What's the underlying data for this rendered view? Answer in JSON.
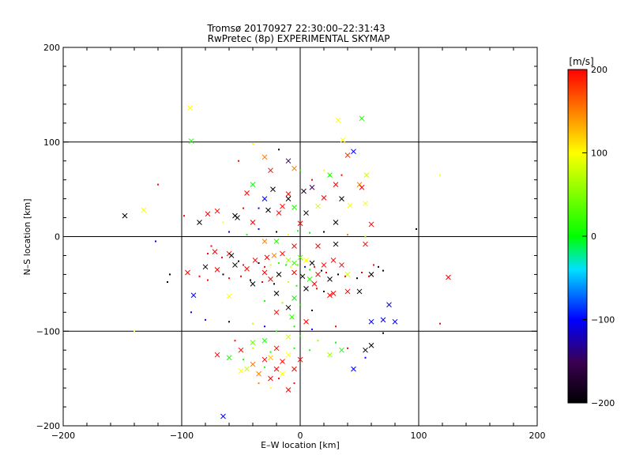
{
  "chart_data": {
    "type": "scatter",
    "title": "Tromsø 20170927 22:30:00–22:31:43",
    "subtitle": "RwPretec (8p) EXPERIMENTAL SKYMAP",
    "xlabel": "E–W location [km]",
    "ylabel": "N–S location [km]",
    "xlim": [
      -200,
      200
    ],
    "ylim": [
      -200,
      200
    ],
    "xticks": [
      -200,
      -100,
      0,
      100,
      200
    ],
    "yticks": [
      -200,
      -100,
      0,
      100,
      200
    ],
    "grid": true,
    "colorbar": {
      "label": "[m/s]",
      "min": -200,
      "max": 200,
      "ticks": [
        200,
        100,
        0,
        -100,
        -200
      ],
      "colormap": "black-purple-blue-cyan-green-yellow-red"
    },
    "markers": {
      "cross": "x",
      "dot": "small dot"
    },
    "points": [
      [
        -93,
        136,
        100,
        "x"
      ],
      [
        -92,
        101,
        10,
        "x"
      ],
      [
        32,
        123,
        100,
        "x"
      ],
      [
        52,
        125,
        10,
        "x"
      ],
      [
        36,
        102,
        100,
        "x"
      ],
      [
        45,
        90,
        -100,
        "x"
      ],
      [
        40,
        86,
        180,
        "x"
      ],
      [
        -30,
        84,
        150,
        "x"
      ],
      [
        -10,
        80,
        -150,
        "x"
      ],
      [
        -5,
        72,
        150,
        "x"
      ],
      [
        -25,
        70,
        200,
        "x"
      ],
      [
        25,
        65,
        10,
        "x"
      ],
      [
        56,
        65,
        80,
        "x"
      ],
      [
        -40,
        55,
        0,
        "x"
      ],
      [
        10,
        52,
        -150,
        "x"
      ],
      [
        30,
        55,
        200,
        "x"
      ],
      [
        50,
        55,
        150,
        "x"
      ],
      [
        52,
        52,
        200,
        "x"
      ],
      [
        -23,
        50,
        -200,
        "x"
      ],
      [
        3,
        48,
        -180,
        "x"
      ],
      [
        -10,
        45,
        200,
        "x"
      ],
      [
        -45,
        46,
        200,
        "x"
      ],
      [
        -30,
        40,
        -100,
        "x"
      ],
      [
        -10,
        40,
        -200,
        "x"
      ],
      [
        20,
        41,
        200,
        "x"
      ],
      [
        35,
        40,
        -200,
        "x"
      ],
      [
        -15,
        32,
        200,
        "x"
      ],
      [
        -5,
        31,
        10,
        "x"
      ],
      [
        5,
        25,
        -200,
        "x"
      ],
      [
        15,
        32,
        80,
        "x"
      ],
      [
        42,
        33,
        100,
        "x"
      ],
      [
        55,
        35,
        100,
        "x"
      ],
      [
        -70,
        27,
        200,
        "x"
      ],
      [
        -55,
        22,
        -200,
        "x"
      ],
      [
        -53,
        20,
        -200,
        "x"
      ],
      [
        -27,
        28,
        -200,
        "x"
      ],
      [
        -18,
        25,
        200,
        "x"
      ],
      [
        -132,
        28,
        100,
        "x"
      ],
      [
        -148,
        22,
        -200,
        "x"
      ],
      [
        -85,
        15,
        -200,
        "x"
      ],
      [
        -78,
        24,
        200,
        "x"
      ],
      [
        -40,
        15,
        200,
        "x"
      ],
      [
        0,
        14,
        200,
        "x"
      ],
      [
        30,
        15,
        -200,
        "x"
      ],
      [
        60,
        13,
        200,
        "x"
      ],
      [
        -30,
        -5,
        150,
        "x"
      ],
      [
        -20,
        -5,
        10,
        "x"
      ],
      [
        -5,
        -10,
        200,
        "x"
      ],
      [
        15,
        -10,
        200,
        "x"
      ],
      [
        30,
        -8,
        -200,
        "x"
      ],
      [
        55,
        -8,
        200,
        "x"
      ],
      [
        -60,
        -18,
        200,
        "x"
      ],
      [
        -72,
        -16,
        200,
        "x"
      ],
      [
        -58,
        -20,
        -200,
        "x"
      ],
      [
        -38,
        -25,
        200,
        "x"
      ],
      [
        -28,
        -22,
        200,
        "x"
      ],
      [
        -22,
        -20,
        150,
        "x"
      ],
      [
        -15,
        -18,
        200,
        "x"
      ],
      [
        -10,
        -25,
        60,
        "x"
      ],
      [
        -5,
        -28,
        20,
        "x"
      ],
      [
        0,
        -22,
        40,
        "x"
      ],
      [
        5,
        -25,
        100,
        "x"
      ],
      [
        10,
        -28,
        -200,
        "x"
      ],
      [
        20,
        -30,
        200,
        "x"
      ],
      [
        28,
        -25,
        200,
        "x"
      ],
      [
        35,
        -30,
        200,
        "x"
      ],
      [
        -80,
        -32,
        -200,
        "x"
      ],
      [
        -70,
        -35,
        200,
        "x"
      ],
      [
        -55,
        -30,
        -200,
        "x"
      ],
      [
        -45,
        -34,
        200,
        "x"
      ],
      [
        -30,
        -38,
        200,
        "x"
      ],
      [
        -18,
        -40,
        -200,
        "x"
      ],
      [
        -5,
        -38,
        200,
        "x"
      ],
      [
        2,
        -42,
        -200,
        "x"
      ],
      [
        8,
        -45,
        10,
        "x"
      ],
      [
        15,
        -40,
        200,
        "x"
      ],
      [
        25,
        -45,
        -200,
        "x"
      ],
      [
        40,
        -40,
        80,
        "x"
      ],
      [
        60,
        -40,
        -200,
        "x"
      ],
      [
        -95,
        -38,
        200,
        "x"
      ],
      [
        -40,
        -50,
        -200,
        "x"
      ],
      [
        -25,
        -45,
        200,
        "x"
      ],
      [
        5,
        -55,
        -200,
        "x"
      ],
      [
        12,
        -50,
        200,
        "x"
      ],
      [
        28,
        -60,
        200,
        "x"
      ],
      [
        40,
        -58,
        200,
        "x"
      ],
      [
        -90,
        -62,
        -100,
        "x"
      ],
      [
        -60,
        -63,
        100,
        "x"
      ],
      [
        -20,
        -60,
        -200,
        "x"
      ],
      [
        -5,
        -65,
        0,
        "x"
      ],
      [
        25,
        -62,
        200,
        "x"
      ],
      [
        50,
        -58,
        -200,
        "x"
      ],
      [
        75,
        -72,
        -100,
        "x"
      ],
      [
        -10,
        -75,
        -200,
        "x"
      ],
      [
        -20,
        -80,
        200,
        "x"
      ],
      [
        -7,
        -85,
        20,
        "x"
      ],
      [
        5,
        -90,
        200,
        "x"
      ],
      [
        60,
        -90,
        -100,
        "x"
      ],
      [
        70,
        -88,
        -100,
        "x"
      ],
      [
        80,
        -90,
        -100,
        "x"
      ],
      [
        125,
        -43,
        200,
        "x"
      ],
      [
        -10,
        -106,
        80,
        "x"
      ],
      [
        -30,
        -110,
        10,
        "x"
      ],
      [
        -40,
        -112,
        40,
        "x"
      ],
      [
        -50,
        -120,
        200,
        "x"
      ],
      [
        -20,
        -118,
        200,
        "x"
      ],
      [
        -10,
        -125,
        100,
        "x"
      ],
      [
        0,
        -130,
        200,
        "x"
      ],
      [
        -30,
        -130,
        200,
        "x"
      ],
      [
        -40,
        -135,
        150,
        "x"
      ],
      [
        -20,
        -140,
        200,
        "x"
      ],
      [
        -15,
        -145,
        100,
        "x"
      ],
      [
        -5,
        -140,
        200,
        "x"
      ],
      [
        -60,
        -128,
        10,
        "x"
      ],
      [
        -70,
        -125,
        200,
        "x"
      ],
      [
        -25,
        -150,
        200,
        "x"
      ],
      [
        -10,
        -162,
        200,
        "x"
      ],
      [
        45,
        -140,
        -100,
        "x"
      ],
      [
        60,
        -115,
        -200,
        "x"
      ],
      [
        55,
        -120,
        -200,
        "x"
      ],
      [
        -65,
        -190,
        -100,
        "x"
      ],
      [
        35,
        -120,
        10,
        "x"
      ],
      [
        25,
        -125,
        60,
        "x"
      ],
      [
        -45,
        -140,
        80,
        "x"
      ],
      [
        -35,
        -145,
        150,
        "x"
      ],
      [
        -50,
        -142,
        100,
        "x"
      ],
      [
        -25,
        -128,
        120,
        "x"
      ],
      [
        -15,
        -132,
        200,
        "x"
      ],
      [
        -120,
        55,
        200,
        "."
      ],
      [
        -98,
        22,
        200,
        "."
      ],
      [
        -110,
        -40,
        -200,
        "."
      ],
      [
        -112,
        -48,
        -200,
        "."
      ],
      [
        -122,
        -5,
        -100,
        "."
      ],
      [
        -140,
        -100,
        100,
        "."
      ],
      [
        98,
        8,
        -200,
        "."
      ],
      [
        118,
        65,
        100,
        "."
      ],
      [
        118,
        -92,
        200,
        "."
      ],
      [
        -18,
        92,
        -200,
        "."
      ],
      [
        -40,
        98,
        100,
        "."
      ],
      [
        -52,
        80,
        200,
        "."
      ],
      [
        0,
        70,
        10,
        "."
      ],
      [
        10,
        60,
        200,
        "."
      ],
      [
        20,
        70,
        100,
        "."
      ],
      [
        35,
        65,
        200,
        "."
      ],
      [
        -60,
        5,
        -100,
        "."
      ],
      [
        -65,
        15,
        100,
        "."
      ],
      [
        -48,
        30,
        200,
        "."
      ],
      [
        -35,
        30,
        -100,
        "."
      ],
      [
        -45,
        2,
        10,
        "."
      ],
      [
        -35,
        8,
        -100,
        "."
      ],
      [
        -20,
        5,
        -200,
        "."
      ],
      [
        -10,
        2,
        100,
        "."
      ],
      [
        -2,
        6,
        10,
        "."
      ],
      [
        8,
        4,
        0,
        "."
      ],
      [
        20,
        5,
        -200,
        "."
      ],
      [
        40,
        2,
        150,
        "."
      ],
      [
        55,
        0,
        60,
        "."
      ],
      [
        -75,
        -10,
        200,
        "."
      ],
      [
        -78,
        -18,
        200,
        "."
      ],
      [
        -66,
        -22,
        200,
        "."
      ],
      [
        -52,
        -26,
        -200,
        "."
      ],
      [
        -48,
        -30,
        200,
        "."
      ],
      [
        -35,
        -28,
        -200,
        "."
      ],
      [
        -30,
        -32,
        200,
        "."
      ],
      [
        -25,
        -30,
        80,
        "."
      ],
      [
        -18,
        -28,
        20,
        "."
      ],
      [
        -12,
        -30,
        0,
        "."
      ],
      [
        -8,
        -32,
        100,
        "."
      ],
      [
        -2,
        -30,
        40,
        "."
      ],
      [
        4,
        -32,
        -100,
        "."
      ],
      [
        8,
        -35,
        10,
        "."
      ],
      [
        12,
        -32,
        200,
        "."
      ],
      [
        18,
        -36,
        -200,
        "."
      ],
      [
        22,
        -38,
        200,
        "."
      ],
      [
        32,
        -40,
        -200,
        "."
      ],
      [
        38,
        -42,
        200,
        "."
      ],
      [
        48,
        -44,
        -200,
        "."
      ],
      [
        52,
        -38,
        200,
        "."
      ],
      [
        58,
        -42,
        200,
        "."
      ],
      [
        66,
        -32,
        -200,
        "."
      ],
      [
        70,
        -36,
        -200,
        "."
      ],
      [
        62,
        -30,
        200,
        "."
      ],
      [
        -85,
        -42,
        200,
        "."
      ],
      [
        -78,
        -46,
        200,
        "."
      ],
      [
        -65,
        -40,
        -200,
        "."
      ],
      [
        -60,
        -44,
        200,
        "."
      ],
      [
        -50,
        -42,
        200,
        "."
      ],
      [
        -42,
        -46,
        -200,
        "."
      ],
      [
        -32,
        -48,
        200,
        "."
      ],
      [
        -22,
        -50,
        -200,
        "."
      ],
      [
        -10,
        -48,
        80,
        "."
      ],
      [
        -3,
        -52,
        10,
        "."
      ],
      [
        14,
        -55,
        200,
        "."
      ],
      [
        20,
        -58,
        -200,
        "."
      ],
      [
        -30,
        -68,
        10,
        "."
      ],
      [
        -15,
        -70,
        60,
        "."
      ],
      [
        0,
        -72,
        10,
        "."
      ],
      [
        10,
        -78,
        -200,
        "."
      ],
      [
        -92,
        -80,
        -100,
        "."
      ],
      [
        -80,
        -88,
        -100,
        "."
      ],
      [
        -60,
        -90,
        -200,
        "."
      ],
      [
        -40,
        -92,
        80,
        "."
      ],
      [
        -30,
        -95,
        -100,
        "."
      ],
      [
        -5,
        -95,
        0,
        "."
      ],
      [
        10,
        -98,
        -100,
        "."
      ],
      [
        30,
        -95,
        200,
        "."
      ],
      [
        -20,
        -100,
        10,
        "."
      ],
      [
        0,
        -105,
        10,
        "."
      ],
      [
        15,
        -110,
        60,
        "."
      ],
      [
        30,
        -112,
        0,
        "."
      ],
      [
        40,
        -118,
        200,
        "."
      ],
      [
        -40,
        -118,
        80,
        "."
      ],
      [
        -25,
        -122,
        10,
        "."
      ],
      [
        -5,
        -118,
        0,
        "."
      ],
      [
        8,
        -120,
        10,
        "."
      ],
      [
        -55,
        -110,
        200,
        "."
      ],
      [
        -48,
        -130,
        10,
        "."
      ],
      [
        -30,
        -138,
        10,
        "."
      ],
      [
        -18,
        -150,
        200,
        "."
      ],
      [
        -5,
        -155,
        200,
        "."
      ],
      [
        -25,
        -160,
        100,
        "."
      ],
      [
        -35,
        -155,
        150,
        "."
      ],
      [
        55,
        -128,
        -100,
        "."
      ],
      [
        70,
        -102,
        -200,
        "."
      ]
    ]
  }
}
